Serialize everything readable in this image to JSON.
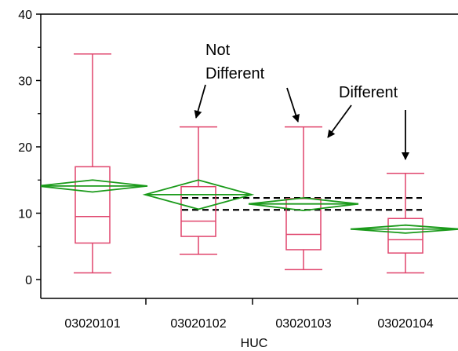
{
  "chart_data": {
    "type": "box",
    "title": "",
    "xlabel": "HUC",
    "ylabel": "",
    "ylim": [
      0,
      40
    ],
    "yticks": [
      0,
      10,
      20,
      30,
      40
    ],
    "categories": [
      "03020101",
      "03020102",
      "03020103",
      "03020104"
    ],
    "boxes": [
      {
        "category": "03020101",
        "min": 1.0,
        "q1": 5.5,
        "median": 9.5,
        "q3": 17.0,
        "max": 34.0
      },
      {
        "category": "03020102",
        "min": 3.8,
        "q1": 6.5,
        "median": 8.8,
        "q3": 14.0,
        "max": 23.0
      },
      {
        "category": "03020103",
        "min": 1.5,
        "q1": 4.5,
        "median": 6.8,
        "q3": 12.2,
        "max": 23.0
      },
      {
        "category": "03020104",
        "min": 1.0,
        "q1": 4.0,
        "median": 6.0,
        "q3": 9.2,
        "max": 16.0
      }
    ],
    "means_diamonds": [
      {
        "category": "03020101",
        "mean": 14.1,
        "lower": 13.2,
        "upper": 15.0
      },
      {
        "category": "03020102",
        "mean": 12.8,
        "lower": 10.6,
        "upper": 15.0
      },
      {
        "category": "03020103",
        "mean": 11.4,
        "lower": 10.4,
        "upper": 12.3
      },
      {
        "category": "03020104",
        "mean": 7.6,
        "lower": 7.0,
        "upper": 8.2
      }
    ],
    "reference_lines": [
      12.3,
      10.5
    ],
    "annotations": [
      {
        "lines": [
          "Not",
          "Different"
        ]
      },
      {
        "lines": [
          "Different"
        ]
      }
    ],
    "colors": {
      "box": "#e0446c",
      "diamond": "#1a9a1a",
      "reference": "#000000"
    }
  }
}
